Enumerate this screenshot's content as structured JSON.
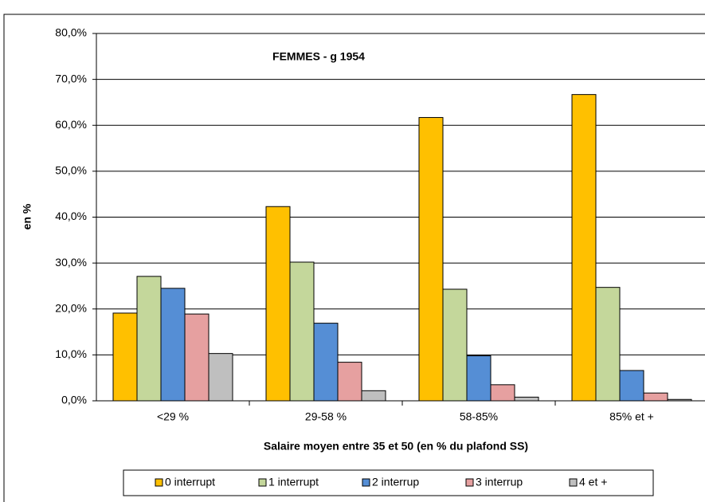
{
  "chart_data": {
    "type": "bar",
    "title": "FEMMES - g 1954",
    "x_label": "Salaire moyen entre 35 et 50 (en % du plafond SS)",
    "y_label": "en %",
    "categories": [
      "<29 %",
      "29-58 %",
      "58-85%",
      "85% et +"
    ],
    "series": [
      {
        "name": "0 interrupt",
        "color": "#FFC000",
        "values": [
          19.1,
          42.3,
          61.7,
          66.7
        ]
      },
      {
        "name": "1 interrupt",
        "color": "#C4D79B",
        "values": [
          27.1,
          30.2,
          24.3,
          24.7
        ]
      },
      {
        "name": "2 interrup",
        "color": "#558ED5",
        "values": [
          24.5,
          16.9,
          9.8,
          6.6
        ]
      },
      {
        "name": "3 interrup",
        "color": "#E6A0A0",
        "values": [
          18.9,
          8.4,
          3.5,
          1.7
        ]
      },
      {
        "name": "4 et +",
        "color": "#BFBFBF",
        "values": [
          10.3,
          2.2,
          0.8,
          0.3
        ]
      }
    ],
    "ylim": [
      0,
      80
    ],
    "yticks": [
      {
        "value": 0,
        "label": "0,0%"
      },
      {
        "value": 10,
        "label": "10,0%"
      },
      {
        "value": 20,
        "label": "20,0%"
      },
      {
        "value": 30,
        "label": "30,0%"
      },
      {
        "value": 40,
        "label": "40,0%"
      },
      {
        "value": 50,
        "label": "50,0%"
      },
      {
        "value": 60,
        "label": "60,0%"
      },
      {
        "value": 70,
        "label": "70,0%"
      },
      {
        "value": 80,
        "label": "80,0%"
      }
    ],
    "grid": true
  }
}
